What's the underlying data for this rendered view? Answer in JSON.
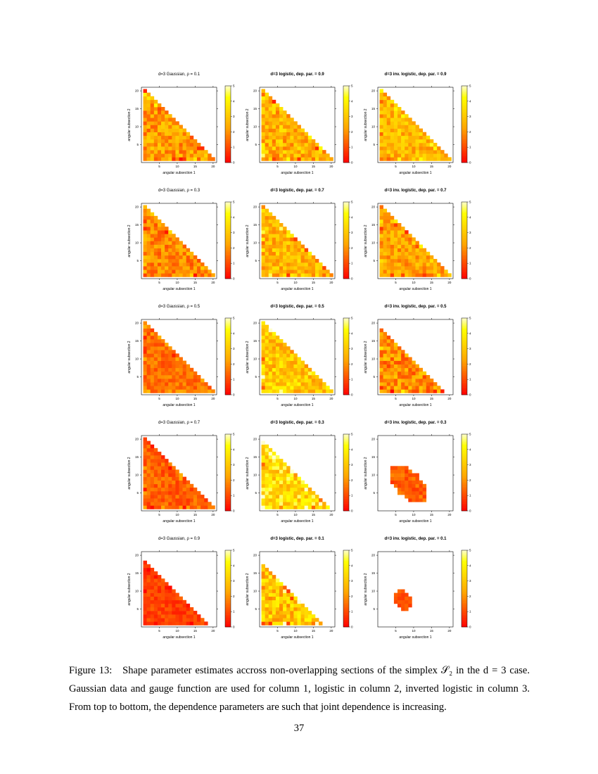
{
  "chart_data": [
    {
      "type": "heatmap",
      "row": 1,
      "col": 1,
      "title": "d=3 Gaussian, ρ = 0.1",
      "title_bold": false,
      "xlabel": "angular subsection 1",
      "ylabel": "angular subsection 2",
      "xlim": [
        0,
        21
      ],
      "ylim": [
        0,
        21
      ],
      "xticks": [
        5,
        10,
        15,
        20
      ],
      "yticks": [
        5,
        10,
        15,
        20
      ],
      "colorbar": {
        "min": 0,
        "max": 5,
        "ticks": [
          0,
          1,
          2,
          3,
          4,
          5
        ]
      },
      "support": "triangle",
      "support_max": 20,
      "typical_value": 2.2,
      "spread": 1.0
    },
    {
      "type": "heatmap",
      "row": 1,
      "col": 2,
      "title": "d=3 logistic, dep. par. = 0.9",
      "title_bold": true,
      "xlabel": "angular subsection 1",
      "ylabel": "angular subsection 2",
      "xlim": [
        0,
        21
      ],
      "ylim": [
        0,
        21
      ],
      "xticks": [
        5,
        10,
        15,
        20
      ],
      "yticks": [
        5,
        10,
        15,
        20
      ],
      "colorbar": {
        "min": 0,
        "max": 5,
        "ticks": [
          0,
          1,
          2,
          3,
          4,
          5
        ]
      },
      "support": "triangle",
      "support_max": 20,
      "typical_value": 2.6,
      "spread": 1.1
    },
    {
      "type": "heatmap",
      "row": 1,
      "col": 3,
      "title": "d=3 inv. logistic, dep. par. = 0.9",
      "title_bold": true,
      "xlabel": "angular subsection 1",
      "ylabel": "angular subsection 2",
      "xlim": [
        0,
        21
      ],
      "ylim": [
        0,
        21
      ],
      "xticks": [
        5,
        10,
        15,
        20
      ],
      "yticks": [
        5,
        10,
        15,
        20
      ],
      "colorbar": {
        "min": 0,
        "max": 5,
        "ticks": [
          0,
          1,
          2,
          3,
          4,
          5
        ]
      },
      "support": "triangle",
      "support_max": 20,
      "typical_value": 2.7,
      "spread": 0.9
    },
    {
      "type": "heatmap",
      "row": 2,
      "col": 1,
      "title": "d=3 Gaussian, ρ = 0.3",
      "title_bold": false,
      "xlabel": "angular subsection 1",
      "ylabel": "angular subsection 2",
      "xlim": [
        0,
        21
      ],
      "ylim": [
        0,
        21
      ],
      "xticks": [
        5,
        10,
        15,
        20
      ],
      "yticks": [
        5,
        10,
        15,
        20
      ],
      "colorbar": {
        "min": 0,
        "max": 5,
        "ticks": [
          0,
          1,
          2,
          3,
          4,
          5
        ]
      },
      "support": "triangle",
      "support_max": 20,
      "typical_value": 1.9,
      "spread": 0.9
    },
    {
      "type": "heatmap",
      "row": 2,
      "col": 2,
      "title": "d=3 logistic, dep. par. = 0.7",
      "title_bold": true,
      "xlabel": "angular subsection 1",
      "ylabel": "angular subsection 2",
      "xlim": [
        0,
        21
      ],
      "ylim": [
        0,
        21
      ],
      "xticks": [
        5,
        10,
        15,
        20
      ],
      "yticks": [
        5,
        10,
        15,
        20
      ],
      "colorbar": {
        "min": 0,
        "max": 5,
        "ticks": [
          0,
          1,
          2,
          3,
          4,
          5
        ]
      },
      "support": "triangle",
      "support_max": 20,
      "typical_value": 2.7,
      "spread": 1.0
    },
    {
      "type": "heatmap",
      "row": 2,
      "col": 3,
      "title": "d=3 inv. logistic, dep. par. = 0.7",
      "title_bold": true,
      "xlabel": "angular subsection 1",
      "ylabel": "angular subsection 2",
      "xlim": [
        0,
        21
      ],
      "ylim": [
        0,
        21
      ],
      "xticks": [
        5,
        10,
        15,
        20
      ],
      "yticks": [
        5,
        10,
        15,
        20
      ],
      "colorbar": {
        "min": 0,
        "max": 5,
        "ticks": [
          0,
          1,
          2,
          3,
          4,
          5
        ]
      },
      "support": "triangle",
      "support_max": 20,
      "typical_value": 2.3,
      "spread": 0.9
    },
    {
      "type": "heatmap",
      "row": 3,
      "col": 1,
      "title": "d=3 Gaussian, ρ = 0.5",
      "title_bold": false,
      "xlabel": "angular subsection 1",
      "ylabel": "angular subsection 2",
      "xlim": [
        0,
        21
      ],
      "ylim": [
        0,
        21
      ],
      "xticks": [
        5,
        10,
        15,
        20
      ],
      "yticks": [
        5,
        10,
        15,
        20
      ],
      "colorbar": {
        "min": 0,
        "max": 5,
        "ticks": [
          0,
          1,
          2,
          3,
          4,
          5
        ]
      },
      "support": "triangle",
      "support_max": 20,
      "typical_value": 1.5,
      "spread": 0.6
    },
    {
      "type": "heatmap",
      "row": 3,
      "col": 2,
      "title": "d=3 logistic, dep. par. = 0.5",
      "title_bold": true,
      "xlabel": "angular subsection 1",
      "ylabel": "angular subsection 2",
      "xlim": [
        0,
        21
      ],
      "ylim": [
        0,
        21
      ],
      "xticks": [
        5,
        10,
        15,
        20
      ],
      "yticks": [
        5,
        10,
        15,
        20
      ],
      "colorbar": {
        "min": 0,
        "max": 5,
        "ticks": [
          0,
          1,
          2,
          3,
          4,
          5
        ]
      },
      "support": "triangle",
      "support_max": 20,
      "typical_value": 3.1,
      "spread": 1.1
    },
    {
      "type": "heatmap",
      "row": 3,
      "col": 3,
      "title": "d=3 inv. logistic, dep. par. = 0.5",
      "title_bold": true,
      "xlabel": "angular subsection 1",
      "ylabel": "angular subsection 2",
      "xlim": [
        0,
        21
      ],
      "ylim": [
        0,
        21
      ],
      "xticks": [
        5,
        10,
        15,
        20
      ],
      "yticks": [
        5,
        10,
        15,
        20
      ],
      "colorbar": {
        "min": 0,
        "max": 5,
        "ticks": [
          0,
          1,
          2,
          3,
          4,
          5
        ]
      },
      "support": "triangle",
      "support_max": 18,
      "typical_value": 2.0,
      "spread": 1.1
    },
    {
      "type": "heatmap",
      "row": 4,
      "col": 1,
      "title": "d=3 Gaussian, ρ = 0.7",
      "title_bold": false,
      "xlabel": "angular subsection 1",
      "ylabel": "angular subsection 2",
      "xlim": [
        0,
        21
      ],
      "ylim": [
        0,
        21
      ],
      "xticks": [
        5,
        10,
        15,
        20
      ],
      "yticks": [
        5,
        10,
        15,
        20
      ],
      "colorbar": {
        "min": 0,
        "max": 5,
        "ticks": [
          0,
          1,
          2,
          3,
          4,
          5
        ]
      },
      "support": "triangle",
      "support_max": 20,
      "typical_value": 1.3,
      "spread": 0.6
    },
    {
      "type": "heatmap",
      "row": 4,
      "col": 2,
      "title": "d=3 logistic, dep. par. = 0.3",
      "title_bold": true,
      "xlabel": "angular subsection 1",
      "ylabel": "angular subsection 2",
      "xlim": [
        0,
        21
      ],
      "ylim": [
        0,
        21
      ],
      "xticks": [
        5,
        10,
        15,
        20
      ],
      "yticks": [
        5,
        10,
        15,
        20
      ],
      "colorbar": {
        "min": 0,
        "max": 5,
        "ticks": [
          0,
          1,
          2,
          3,
          4,
          5
        ]
      },
      "support": "triangle",
      "support_max": 19,
      "typical_value": 3.5,
      "spread": 1.2
    },
    {
      "type": "heatmap",
      "row": 4,
      "col": 3,
      "title": "d=3 inv. logistic, dep. par. = 0.3",
      "title_bold": true,
      "xlabel": "angular subsection 1",
      "ylabel": "angular subsection 2",
      "xlim": [
        0,
        21
      ],
      "ylim": [
        0,
        21
      ],
      "xticks": [
        5,
        10,
        15,
        20
      ],
      "yticks": [
        5,
        10,
        15,
        20
      ],
      "colorbar": {
        "min": 0,
        "max": 5,
        "ticks": [
          0,
          1,
          2,
          3,
          4,
          5
        ]
      },
      "support": "ellipse",
      "ellipse": {
        "cx": 8.5,
        "cy": 7.5,
        "rx": 6.5,
        "ry": 3.6,
        "angle": -45
      },
      "typical_value": 1.3,
      "spread": 0.6
    },
    {
      "type": "heatmap",
      "row": 5,
      "col": 1,
      "title": "d=3 Gaussian, ρ = 0.9",
      "title_bold": false,
      "xlabel": "angular subsection 1",
      "ylabel": "angular subsection 2",
      "xlim": [
        0,
        21
      ],
      "ylim": [
        0,
        21
      ],
      "xticks": [
        5,
        10,
        15,
        20
      ],
      "yticks": [
        5,
        10,
        15,
        20
      ],
      "colorbar": {
        "min": 0,
        "max": 5,
        "ticks": [
          0,
          1,
          2,
          3,
          4,
          5
        ]
      },
      "support": "triangle",
      "support_max": 18,
      "typical_value": 0.9,
      "spread": 0.5
    },
    {
      "type": "heatmap",
      "row": 5,
      "col": 2,
      "title": "d=3 logistic, dep. par. = 0.1",
      "title_bold": true,
      "xlabel": "angular subsection 1",
      "ylabel": "angular subsection 2",
      "xlim": [
        0,
        21
      ],
      "ylim": [
        0,
        21
      ],
      "xticks": [
        5,
        10,
        15,
        20
      ],
      "yticks": [
        5,
        10,
        15,
        20
      ],
      "colorbar": {
        "min": 0,
        "max": 5,
        "ticks": [
          0,
          1,
          2,
          3,
          4,
          5
        ]
      },
      "support": "triangle",
      "support_max": 17,
      "typical_value": 3.0,
      "spread": 1.2
    },
    {
      "type": "heatmap",
      "row": 5,
      "col": 3,
      "title": "d=3 inv. logistic, dep. par. = 0.1",
      "title_bold": true,
      "xlabel": "angular subsection 1",
      "ylabel": "angular subsection 2",
      "xlim": [
        0,
        21
      ],
      "ylim": [
        0,
        21
      ],
      "xticks": [
        5,
        10,
        15,
        20
      ],
      "yticks": [
        5,
        10,
        15,
        20
      ],
      "colorbar": {
        "min": 0,
        "max": 5,
        "ticks": [
          0,
          1,
          2,
          3,
          4,
          5
        ]
      },
      "support": "ellipse",
      "ellipse": {
        "cx": 7.0,
        "cy": 7.5,
        "rx": 3.2,
        "ry": 2.2,
        "angle": -45
      },
      "typical_value": 1.2,
      "spread": 0.4
    }
  ],
  "caption": {
    "label": "Figure 13:",
    "text": "Shape parameter estimates accross non-overlapping sections of the simplex 𝒮₂ in the d = 3 case. Gaussian data and gauge function are used for column 1, logistic in column 2, inverted logistic in column 3. From top to bottom, the dependence parameters are such that joint dependence is increasing."
  },
  "page_number": "37",
  "colors": {
    "low": "#ff0000",
    "mid": "#ffa500",
    "high": "#ffff00",
    "top": "#ffffcc"
  }
}
